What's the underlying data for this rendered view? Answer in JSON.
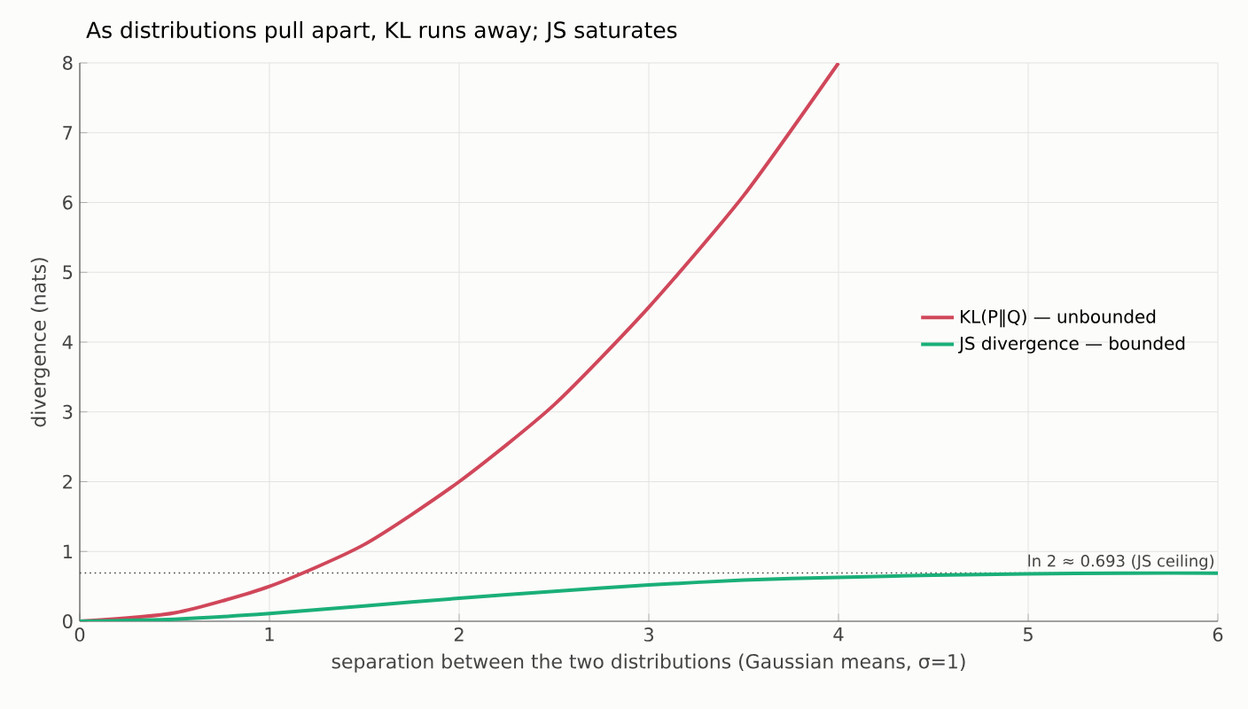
{
  "chart_data": {
    "type": "line",
    "title": "As distributions pull apart, KL runs away; JS saturates",
    "xlabel": "separation between the two distributions (Gaussian means, σ=1)",
    "ylabel": "divergence (nats)",
    "x": [
      0,
      0.5,
      1,
      1.5,
      2,
      2.5,
      3,
      3.5,
      4,
      4.5,
      5,
      5.5,
      6
    ],
    "series": [
      {
        "name": "KL(P‖Q)  — unbounded",
        "color": "#d0475a",
        "values": [
          0,
          0.12,
          0.5,
          1.1,
          2,
          3.1,
          4.5,
          6.1,
          8,
          null,
          null,
          null,
          null
        ]
      },
      {
        "name": "JS divergence — bounded",
        "color": "#1aaf78",
        "values": [
          0,
          0.03,
          0.11,
          0.22,
          0.33,
          0.43,
          0.52,
          0.59,
          0.63,
          0.66,
          0.68,
          0.69,
          0.69
        ]
      }
    ],
    "xlim": [
      0,
      6
    ],
    "ylim": [
      0,
      8
    ],
    "xticks": [
      0,
      1,
      2,
      3,
      4,
      5,
      6
    ],
    "yticks": [
      0,
      1,
      2,
      3,
      4,
      5,
      6,
      7,
      8
    ],
    "ref_lines": [
      {
        "axis": "y",
        "value": 0.693,
        "label": "ln 2 ≈ 0.693  (JS ceiling)",
        "color": "#444444",
        "line_style": "dotted"
      }
    ],
    "grid": true,
    "legend": "right",
    "line_style": "solid"
  }
}
